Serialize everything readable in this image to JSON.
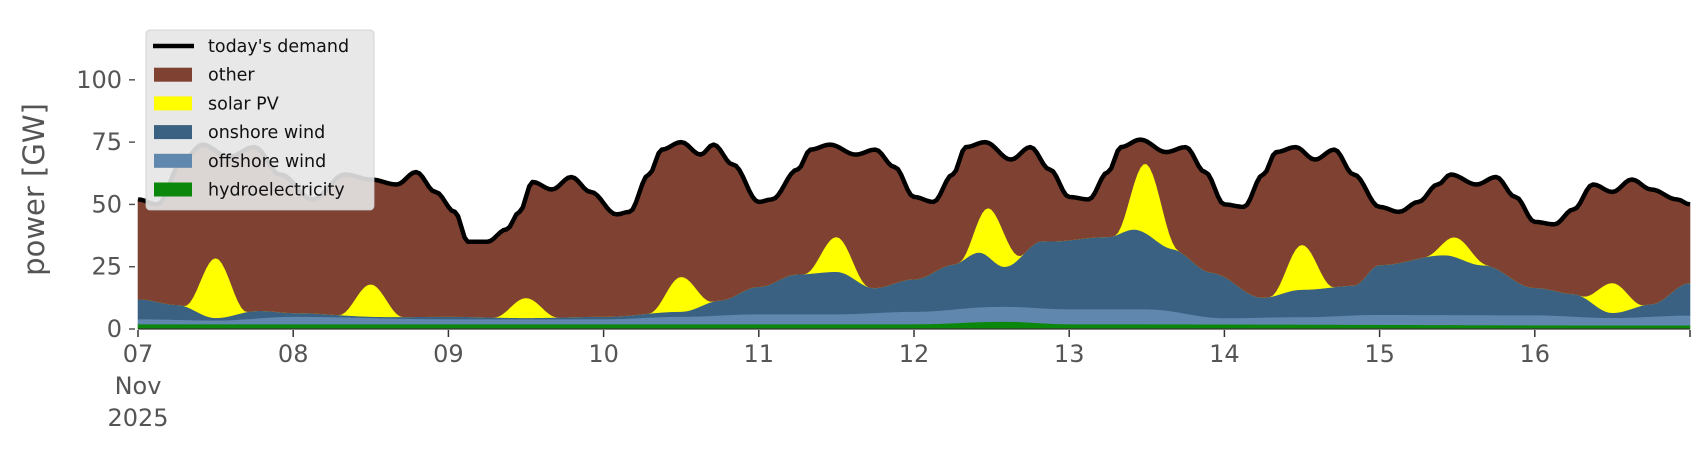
{
  "chart_data": {
    "type": "area",
    "stacked": true,
    "ylabel": "power [GW]",
    "xlabel": "",
    "ylim": [
      0,
      120
    ],
    "yticks": [
      0,
      25,
      50,
      75,
      100
    ],
    "x_range_days": [
      "2025-11-07",
      "2025-11-17"
    ],
    "x_tick_labels": [
      {
        "date": "2025-11-07",
        "lines": [
          "07",
          "Nov",
          "2025"
        ]
      },
      {
        "date": "2025-11-08",
        "lines": [
          "08"
        ]
      },
      {
        "date": "2025-11-09",
        "lines": [
          "09"
        ]
      },
      {
        "date": "2025-11-10",
        "lines": [
          "10"
        ]
      },
      {
        "date": "2025-11-11",
        "lines": [
          "11"
        ]
      },
      {
        "date": "2025-11-12",
        "lines": [
          "12"
        ]
      },
      {
        "date": "2025-11-13",
        "lines": [
          "13"
        ]
      },
      {
        "date": "2025-11-14",
        "lines": [
          "14"
        ]
      },
      {
        "date": "2025-11-15",
        "lines": [
          "15"
        ]
      },
      {
        "date": "2025-11-16",
        "lines": [
          "16"
        ]
      },
      {
        "date": "2025-11-17",
        "lines": [
          ""
        ]
      }
    ],
    "grid": false,
    "legend_position": "top-left",
    "legend": [
      {
        "label": "today's demand",
        "kind": "line",
        "color": "#000000"
      },
      {
        "label": "other",
        "kind": "patch",
        "color": "#7f4232"
      },
      {
        "label": "solar PV",
        "kind": "patch",
        "color": "#ffff00"
      },
      {
        "label": "onshore wind",
        "kind": "patch",
        "color": "#3b6182"
      },
      {
        "label": "offshore wind",
        "kind": "patch",
        "color": "#6087ad"
      },
      {
        "label": "hydroelectricity",
        "kind": "patch",
        "color": "#0b870b"
      }
    ],
    "demand_keypoints": [
      [
        "2025-11-07T00:00",
        52
      ],
      [
        "2025-11-07T03:00",
        50
      ],
      [
        "2025-11-07T07:00",
        68
      ],
      [
        "2025-11-07T10:00",
        74
      ],
      [
        "2025-11-07T14:00",
        69
      ],
      [
        "2025-11-07T18:00",
        73
      ],
      [
        "2025-11-07T22:00",
        62
      ],
      [
        "2025-11-08T03:00",
        52
      ],
      [
        "2025-11-08T08:00",
        62
      ],
      [
        "2025-11-08T12:00",
        60
      ],
      [
        "2025-11-08T16:00",
        58
      ],
      [
        "2025-11-08T19:00",
        63
      ],
      [
        "2025-11-08T22:00",
        55
      ],
      [
        "2025-11-09T01:00",
        47
      ],
      [
        "2025-11-09T03:00",
        35
      ],
      [
        "2025-11-09T06:00",
        35
      ],
      [
        "2025-11-09T09:00",
        40
      ],
      [
        "2025-11-09T11:00",
        47
      ],
      [
        "2025-11-09T13:00",
        59
      ],
      [
        "2025-11-09T16:00",
        56
      ],
      [
        "2025-11-09T19:00",
        61
      ],
      [
        "2025-11-09T22:00",
        55
      ],
      [
        "2025-11-10T02:00",
        46
      ],
      [
        "2025-11-10T04:00",
        47
      ],
      [
        "2025-11-10T07:00",
        62
      ],
      [
        "2025-11-10T09:00",
        72
      ],
      [
        "2025-11-10T12:00",
        75
      ],
      [
        "2025-11-10T15:00",
        70
      ],
      [
        "2025-11-10T17:00",
        74
      ],
      [
        "2025-11-10T20:00",
        66
      ],
      [
        "2025-11-11T00:00",
        51
      ],
      [
        "2025-11-11T02:00",
        52
      ],
      [
        "2025-11-11T06:00",
        64
      ],
      [
        "2025-11-11T08:00",
        72
      ],
      [
        "2025-11-11T11:00",
        74
      ],
      [
        "2025-11-11T15:00",
        70
      ],
      [
        "2025-11-11T18:00",
        72
      ],
      [
        "2025-11-11T21:00",
        65
      ],
      [
        "2025-11-12T00:00",
        53
      ],
      [
        "2025-11-12T03:00",
        51
      ],
      [
        "2025-11-12T06:00",
        62
      ],
      [
        "2025-11-12T08:00",
        73
      ],
      [
        "2025-11-12T11:00",
        75
      ],
      [
        "2025-11-12T15:00",
        68
      ],
      [
        "2025-11-12T18:00",
        73
      ],
      [
        "2025-11-12T21:00",
        64
      ],
      [
        "2025-11-13T00:00",
        53
      ],
      [
        "2025-11-13T03:00",
        52
      ],
      [
        "2025-11-13T06:00",
        63
      ],
      [
        "2025-11-13T08:00",
        73
      ],
      [
        "2025-11-13T11:00",
        76
      ],
      [
        "2025-11-13T15:00",
        71
      ],
      [
        "2025-11-13T18:00",
        73
      ],
      [
        "2025-11-13T21:00",
        63
      ],
      [
        "2025-11-14T00:00",
        50
      ],
      [
        "2025-11-14T03:00",
        49
      ],
      [
        "2025-11-14T06:00",
        62
      ],
      [
        "2025-11-14T08:00",
        71
      ],
      [
        "2025-11-14T11:00",
        73
      ],
      [
        "2025-11-14T14:00",
        68
      ],
      [
        "2025-11-14T17:00",
        72
      ],
      [
        "2025-11-14T20:00",
        62
      ],
      [
        "2025-11-15T00:00",
        49
      ],
      [
        "2025-11-15T03:00",
        47
      ],
      [
        "2025-11-15T06:00",
        51
      ],
      [
        "2025-11-15T09:00",
        58
      ],
      [
        "2025-11-15T11:00",
        62
      ],
      [
        "2025-11-15T15:00",
        58
      ],
      [
        "2025-11-15T18:00",
        61
      ],
      [
        "2025-11-15T21:00",
        53
      ],
      [
        "2025-11-16T00:00",
        43
      ],
      [
        "2025-11-16T03:00",
        42
      ],
      [
        "2025-11-16T06:00",
        48
      ],
      [
        "2025-11-16T09:00",
        58
      ],
      [
        "2025-11-16T12:00",
        55
      ],
      [
        "2025-11-16T15:00",
        60
      ],
      [
        "2025-11-16T18:00",
        56
      ],
      [
        "2025-11-16T22:00",
        52
      ],
      [
        "2025-11-17T00:00",
        50
      ]
    ],
    "hydroelectricity_keypoints": [
      [
        "2025-11-07T00:00",
        2
      ],
      [
        "2025-11-12T00:00",
        2
      ],
      [
        "2025-11-12T14:00",
        3
      ],
      [
        "2025-11-13T00:00",
        2
      ],
      [
        "2025-11-17T00:00",
        1.5
      ]
    ],
    "offshore_wind_keypoints": [
      [
        "2025-11-07T00:00",
        2
      ],
      [
        "2025-11-07T12:00",
        1.5
      ],
      [
        "2025-11-08T00:00",
        3
      ],
      [
        "2025-11-09T00:00",
        2
      ],
      [
        "2025-11-10T00:00",
        2
      ],
      [
        "2025-11-10T12:00",
        3
      ],
      [
        "2025-11-11T00:00",
        4
      ],
      [
        "2025-11-11T12:00",
        4
      ],
      [
        "2025-11-12T00:00",
        5
      ],
      [
        "2025-11-12T12:00",
        6
      ],
      [
        "2025-11-13T12:00",
        6
      ],
      [
        "2025-11-14T00:00",
        2.5
      ],
      [
        "2025-11-14T12:00",
        3
      ],
      [
        "2025-11-15T00:00",
        4
      ],
      [
        "2025-11-16T00:00",
        4
      ],
      [
        "2025-11-16T12:00",
        3
      ],
      [
        "2025-11-17T00:00",
        4
      ]
    ],
    "onshore_wind_keypoints": [
      [
        "2025-11-07T00:00",
        8
      ],
      [
        "2025-11-07T06:00",
        6
      ],
      [
        "2025-11-07T12:00",
        1
      ],
      [
        "2025-11-07T18:00",
        3
      ],
      [
        "2025-11-08T00:00",
        1.5
      ],
      [
        "2025-11-08T12:00",
        0.5
      ],
      [
        "2025-11-09T00:00",
        1
      ],
      [
        "2025-11-09T12:00",
        0.5
      ],
      [
        "2025-11-10T00:00",
        1
      ],
      [
        "2025-11-10T12:00",
        2
      ],
      [
        "2025-11-10T18:00",
        6
      ],
      [
        "2025-11-11T00:00",
        11
      ],
      [
        "2025-11-11T06:00",
        16
      ],
      [
        "2025-11-11T12:00",
        17
      ],
      [
        "2025-11-11T18:00",
        10
      ],
      [
        "2025-11-12T00:00",
        13
      ],
      [
        "2025-11-12T06:00",
        18
      ],
      [
        "2025-11-12T10:00",
        22
      ],
      [
        "2025-11-12T14:00",
        16
      ],
      [
        "2025-11-12T20:00",
        27
      ],
      [
        "2025-11-13T06:00",
        29
      ],
      [
        "2025-11-13T10:00",
        32
      ],
      [
        "2025-11-13T16:00",
        25
      ],
      [
        "2025-11-13T22:00",
        18
      ],
      [
        "2025-11-14T06:00",
        8
      ],
      [
        "2025-11-14T12:00",
        11
      ],
      [
        "2025-11-14T20:00",
        12
      ],
      [
        "2025-11-15T00:00",
        20
      ],
      [
        "2025-11-15T10:00",
        24
      ],
      [
        "2025-11-15T16:00",
        20
      ],
      [
        "2025-11-16T00:00",
        11
      ],
      [
        "2025-11-16T06:00",
        9
      ],
      [
        "2025-11-16T12:00",
        2
      ],
      [
        "2025-11-16T18:00",
        5
      ],
      [
        "2025-11-17T00:00",
        13
      ]
    ],
    "solar_pv_peaks": [
      {
        "day": "2025-11-07",
        "peak": 24
      },
      {
        "day": "2025-11-08",
        "peak": 13
      },
      {
        "day": "2025-11-09",
        "peak": 8
      },
      {
        "day": "2025-11-10",
        "peak": 14
      },
      {
        "day": "2025-11-11",
        "peak": 14
      },
      {
        "day": "2025-11-12",
        "peak": 20
      },
      {
        "day": "2025-11-13",
        "peak": 28
      },
      {
        "day": "2025-11-14",
        "peak": 18
      },
      {
        "day": "2025-11-15",
        "peak": 8
      },
      {
        "day": "2025-11-16",
        "peak": 12
      }
    ],
    "solar_window_hours": [
      7,
      17
    ],
    "solar_noon_hour": 12
  }
}
